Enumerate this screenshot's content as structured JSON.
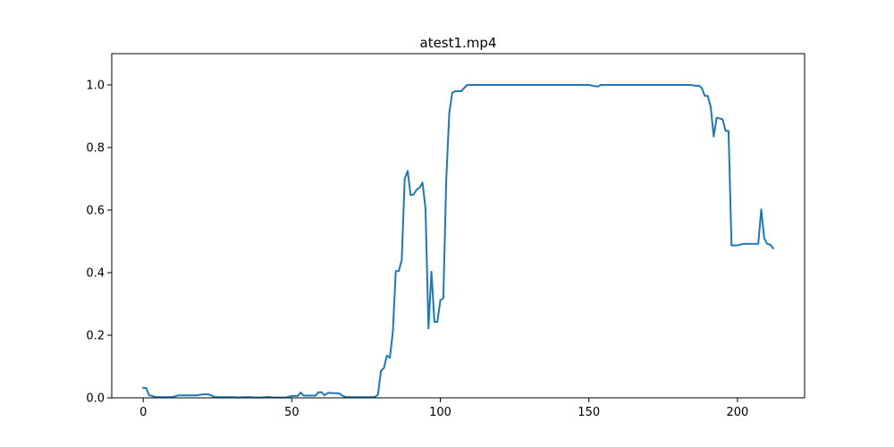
{
  "chart_data": {
    "type": "line",
    "title": "atest1.mp4",
    "xlabel": "",
    "ylabel": "",
    "xlim": [
      -10.6,
      222.6
    ],
    "ylim": [
      0.0,
      1.1
    ],
    "xticks": [
      0,
      50,
      100,
      150,
      200
    ],
    "yticks": [
      0.0,
      0.2,
      0.4,
      0.6,
      0.8,
      1.0
    ],
    "xtick_labels": [
      "0",
      "50",
      "100",
      "150",
      "200"
    ],
    "ytick_labels": [
      "0.0",
      "0.2",
      "0.4",
      "0.6",
      "0.8",
      "1.0"
    ],
    "grid": false,
    "legend": "none",
    "series": [
      {
        "color": "#1f77b4",
        "x": [
          0,
          1,
          2,
          3,
          4,
          5,
          6,
          8,
          10,
          12,
          14,
          16,
          18,
          20,
          22,
          24,
          26,
          28,
          30,
          32,
          34,
          36,
          38,
          40,
          42,
          44,
          46,
          48,
          50,
          52,
          53,
          54,
          56,
          58,
          59,
          60,
          61,
          62,
          63,
          64,
          66,
          67,
          68,
          70,
          72,
          74,
          76,
          78,
          79,
          80,
          81,
          82,
          83,
          84,
          85,
          86,
          87,
          88,
          89,
          90,
          91,
          92,
          93,
          94,
          95,
          96,
          97,
          98,
          99,
          100,
          101,
          102,
          103,
          104,
          105,
          107,
          108,
          109,
          110,
          120,
          130,
          140,
          150,
          152,
          153,
          154,
          160,
          170,
          180,
          184,
          185,
          186,
          187,
          188,
          189,
          190,
          191,
          192,
          193,
          194,
          195,
          196,
          197,
          198,
          199,
          200,
          201,
          202,
          204,
          206,
          207,
          208,
          209,
          210,
          211,
          212
        ],
        "y": [
          0.032,
          0.031,
          0.008,
          0.006,
          0.003,
          0.002,
          0.002,
          0.002,
          0.003,
          0.008,
          0.008,
          0.008,
          0.008,
          0.011,
          0.011,
          0.003,
          0.002,
          0.002,
          0.002,
          0.001,
          0.002,
          0.002,
          0.001,
          0.001,
          0.003,
          0.001,
          0.001,
          0.001,
          0.006,
          0.006,
          0.017,
          0.007,
          0.007,
          0.007,
          0.018,
          0.018,
          0.008,
          0.015,
          0.016,
          0.015,
          0.014,
          0.007,
          0.003,
          0.002,
          0.002,
          0.002,
          0.002,
          0.003,
          0.01,
          0.086,
          0.095,
          0.135,
          0.128,
          0.21,
          0.405,
          0.405,
          0.44,
          0.7,
          0.725,
          0.648,
          0.65,
          0.665,
          0.672,
          0.688,
          0.605,
          0.222,
          0.403,
          0.243,
          0.243,
          0.312,
          0.318,
          0.7,
          0.91,
          0.975,
          0.98,
          0.98,
          0.99,
          1.0,
          1.0,
          1.0,
          1.0,
          1.0,
          1.0,
          0.996,
          0.995,
          1.0,
          1.0,
          1.0,
          1.0,
          1.0,
          0.999,
          0.997,
          0.998,
          0.99,
          0.965,
          0.965,
          0.93,
          0.835,
          0.895,
          0.893,
          0.89,
          0.853,
          0.853,
          0.487,
          0.487,
          0.487,
          0.49,
          0.492,
          0.492,
          0.492,
          0.492,
          0.602,
          0.51,
          0.492,
          0.49,
          0.478
        ]
      }
    ]
  }
}
